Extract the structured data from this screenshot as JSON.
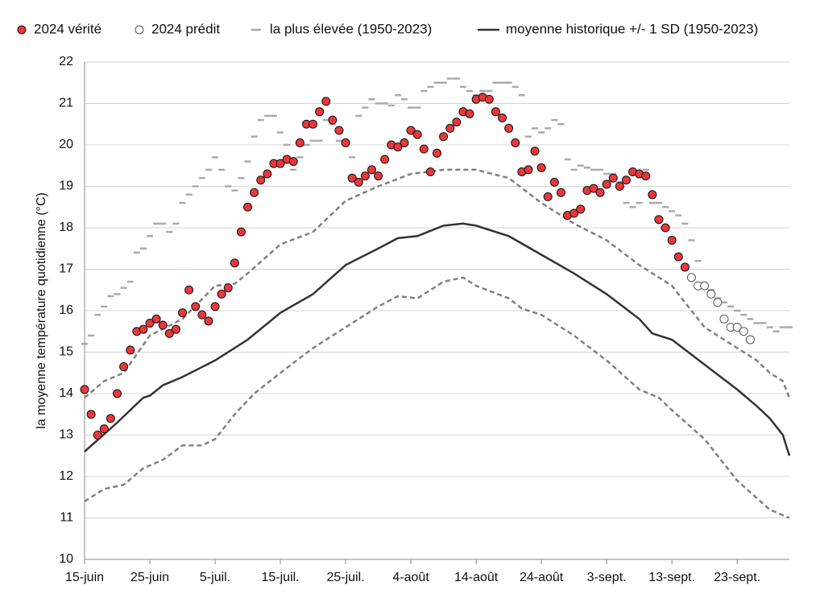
{
  "chart_data": {
    "type": "scatter-line",
    "y_label": "la moyenne température quotidienne (°C)",
    "xlim": [
      0,
      108
    ],
    "xticks": [
      {
        "value": 0,
        "label": "15-juin"
      },
      {
        "value": 10,
        "label": "25-juin"
      },
      {
        "value": 20,
        "label": "5-juil."
      },
      {
        "value": 30,
        "label": "15-juil."
      },
      {
        "value": 40,
        "label": "25-juil."
      },
      {
        "value": 50,
        "label": "4-août"
      },
      {
        "value": 60,
        "label": "14-août"
      },
      {
        "value": 70,
        "label": "24-août"
      },
      {
        "value": 80,
        "label": "3-sept."
      },
      {
        "value": 90,
        "label": "13-sept."
      },
      {
        "value": 100,
        "label": "23-sept."
      }
    ],
    "ylim": [
      10,
      22
    ],
    "yticks": [
      10,
      11,
      12,
      13,
      14,
      15,
      16,
      17,
      18,
      19,
      20,
      21,
      22
    ],
    "grid": true,
    "legend": "top",
    "series": [
      {
        "name": "2024 vérité",
        "style": "dot",
        "color": "#e8383d",
        "x": [
          0,
          1,
          2,
          3,
          4,
          5,
          6,
          7,
          8,
          9,
          10,
          11,
          12,
          13,
          14,
          15,
          16,
          17,
          18,
          19,
          20,
          21,
          22,
          23,
          24,
          25,
          26,
          27,
          28,
          29,
          30,
          31,
          32,
          33,
          34,
          35,
          36,
          37,
          38,
          39,
          40,
          41,
          42,
          43,
          44,
          45,
          46,
          47,
          48,
          49,
          50,
          51,
          52,
          53,
          54,
          55,
          56,
          57,
          58,
          59,
          60,
          61,
          62,
          63,
          64,
          65,
          66,
          67,
          68,
          69,
          70,
          71,
          72,
          73,
          74,
          75,
          76,
          77,
          78,
          79,
          80,
          81,
          82,
          83,
          84,
          85,
          86,
          87,
          88,
          89,
          90,
          91,
          92
        ],
        "values": [
          14.1,
          13.5,
          13.0,
          13.15,
          13.4,
          14.0,
          14.65,
          15.05,
          15.5,
          15.55,
          15.7,
          15.8,
          15.65,
          15.45,
          15.55,
          15.95,
          16.5,
          16.1,
          15.9,
          15.75,
          16.1,
          16.4,
          16.55,
          17.15,
          17.9,
          18.5,
          18.85,
          19.15,
          19.3,
          19.55,
          19.55,
          19.65,
          19.6,
          20.05,
          20.5,
          20.5,
          20.8,
          21.05,
          20.6,
          20.35,
          20.05,
          19.2,
          19.1,
          19.25,
          19.4,
          19.25,
          19.65,
          20.0,
          19.95,
          20.05,
          20.35,
          20.25,
          19.9,
          19.35,
          19.8,
          20.2,
          20.4,
          20.55,
          20.8,
          20.75,
          21.1,
          21.15,
          21.1,
          20.8,
          20.65,
          20.4,
          20.05,
          19.35,
          19.4,
          19.85,
          19.45,
          18.75,
          19.1,
          18.85,
          18.3,
          18.35,
          18.45,
          18.9,
          18.95,
          18.85,
          19.05,
          19.2,
          19.0,
          19.15,
          19.35,
          19.3,
          19.25,
          18.8,
          18.2,
          18.0,
          17.7,
          17.3,
          17.05
        ]
      },
      {
        "name": "2024 prédit",
        "style": "open-dot",
        "color": "#555555",
        "x": [
          93,
          94,
          95,
          96,
          97,
          98,
          99,
          100,
          101,
          102
        ],
        "values": [
          16.8,
          16.6,
          16.6,
          16.4,
          16.2,
          15.8,
          15.6,
          15.6,
          15.5,
          15.3
        ]
      },
      {
        "name": "la plus élevée (1950-2023)",
        "style": "dash",
        "color": "#aaaaaa",
        "x": [
          0,
          1,
          2,
          3,
          4,
          5,
          6,
          7,
          8,
          9,
          10,
          11,
          12,
          13,
          14,
          15,
          16,
          17,
          18,
          19,
          20,
          21,
          22,
          23,
          24,
          25,
          26,
          27,
          28,
          29,
          30,
          31,
          32,
          33,
          34,
          35,
          36,
          37,
          38,
          39,
          40,
          41,
          42,
          43,
          44,
          45,
          46,
          47,
          48,
          49,
          50,
          51,
          52,
          53,
          54,
          55,
          56,
          57,
          58,
          59,
          60,
          61,
          62,
          63,
          64,
          65,
          66,
          67,
          68,
          69,
          70,
          71,
          72,
          73,
          74,
          75,
          76,
          77,
          78,
          79,
          80,
          81,
          82,
          83,
          84,
          85,
          86,
          87,
          88,
          89,
          90,
          91,
          92,
          93,
          94,
          95,
          96,
          97,
          98,
          99,
          100,
          101,
          102,
          103,
          104,
          105,
          106,
          107,
          108
        ],
        "values": [
          15.2,
          15.4,
          15.9,
          16.1,
          16.35,
          16.4,
          16.55,
          16.7,
          17.4,
          17.5,
          17.8,
          18.1,
          18.1,
          17.9,
          18.1,
          18.6,
          18.8,
          19.0,
          19.2,
          19.4,
          19.7,
          19.4,
          19.0,
          18.9,
          19.2,
          19.6,
          20.2,
          20.6,
          20.7,
          20.7,
          20.3,
          20.0,
          19.4,
          19.7,
          20.0,
          20.1,
          20.1,
          20.6,
          20.5,
          20.1,
          20.1,
          19.7,
          20.7,
          20.9,
          21.1,
          21.0,
          21.0,
          20.95,
          21.2,
          21.1,
          20.9,
          20.9,
          21.3,
          21.4,
          21.5,
          21.5,
          21.6,
          21.6,
          21.4,
          21.3,
          21.2,
          21.3,
          21.3,
          21.5,
          21.5,
          21.5,
          21.4,
          21.2,
          20.2,
          20.4,
          20.3,
          20.4,
          20.6,
          20.5,
          19.65,
          19.4,
          19.5,
          19.45,
          19.4,
          19.4,
          19.3,
          19.3,
          19.1,
          18.6,
          18.5,
          18.6,
          19.4,
          18.6,
          18.6,
          18.5,
          18.4,
          18.3,
          18.1,
          17.7,
          17.2,
          16.6,
          16.5,
          16.3,
          16.2,
          16.1,
          16.0,
          15.9,
          15.8,
          15.7,
          15.7,
          15.6,
          15.5,
          15.6,
          15.6
        ]
      },
      {
        "name": "moyenne historique +/- 1 SD (1950-2023)",
        "style": "line",
        "color": "#333333",
        "x": [
          0,
          5,
          9,
          10,
          12,
          15,
          20,
          25,
          30,
          35,
          40,
          45,
          48,
          51,
          55,
          58,
          60,
          65,
          70,
          75,
          80,
          85,
          87,
          90,
          95,
          100,
          103,
          105,
          107,
          108
        ],
        "values": [
          12.6,
          13.3,
          13.9,
          13.95,
          14.2,
          14.4,
          14.8,
          15.3,
          15.95,
          16.4,
          17.1,
          17.5,
          17.75,
          17.8,
          18.05,
          18.1,
          18.05,
          17.8,
          17.35,
          16.9,
          16.4,
          15.8,
          15.45,
          15.3,
          14.7,
          14.1,
          13.7,
          13.4,
          13.0,
          12.5
        ],
        "upper": {
          "color": "#808080",
          "x": [
            0,
            3,
            6,
            10,
            15,
            20,
            23,
            25,
            30,
            35,
            40,
            45,
            50,
            55,
            60,
            65,
            70,
            75,
            80,
            85,
            90,
            95,
            100,
            103,
            105,
            107,
            108
          ],
          "values": [
            13.9,
            14.3,
            14.5,
            15.4,
            15.8,
            16.6,
            16.65,
            16.9,
            17.6,
            17.9,
            18.65,
            19.0,
            19.3,
            19.4,
            19.4,
            19.2,
            18.6,
            18.1,
            17.7,
            17.1,
            16.6,
            15.6,
            15.1,
            14.8,
            14.5,
            14.3,
            13.9
          ]
        },
        "lower": {
          "color": "#808080",
          "x": [
            0,
            3,
            6,
            9,
            12,
            15,
            18,
            20,
            23,
            26,
            30,
            35,
            40,
            45,
            48,
            51,
            55,
            58,
            60,
            65,
            67,
            70,
            75,
            80,
            85,
            88,
            90,
            95,
            100,
            105,
            108
          ],
          "values": [
            11.4,
            11.7,
            11.8,
            12.2,
            12.4,
            12.75,
            12.75,
            12.9,
            13.5,
            14.0,
            14.5,
            15.1,
            15.6,
            16.1,
            16.35,
            16.3,
            16.7,
            16.8,
            16.6,
            16.3,
            16.05,
            15.9,
            15.4,
            14.8,
            14.1,
            13.9,
            13.6,
            12.9,
            11.9,
            11.2,
            11.0
          ]
        }
      }
    ]
  }
}
